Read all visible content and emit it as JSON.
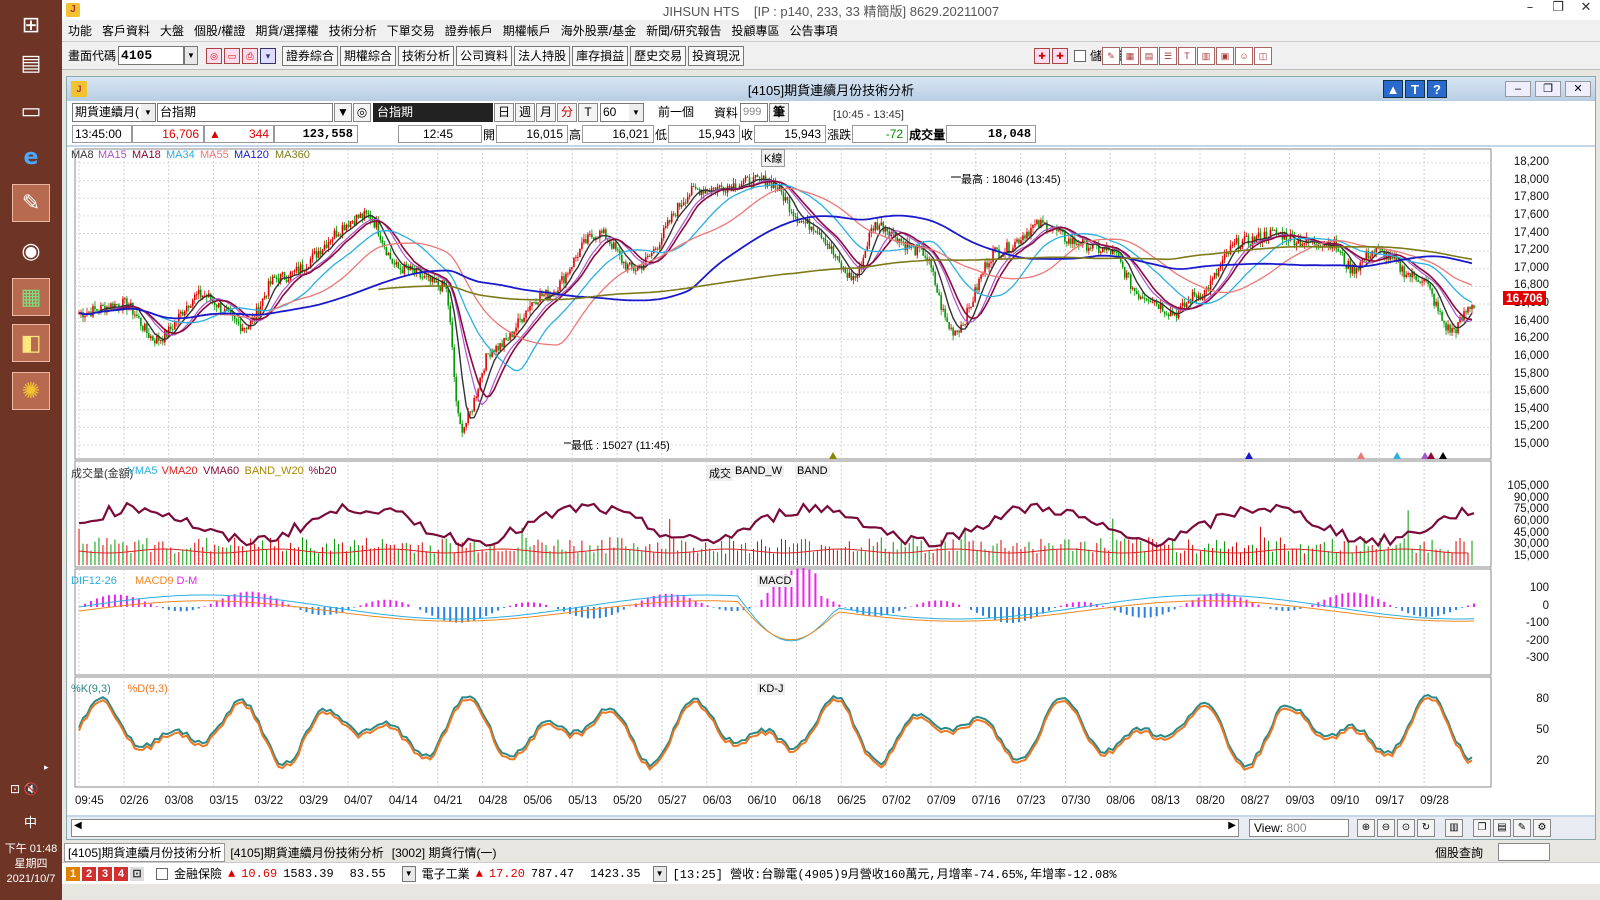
{
  "taskbar": {
    "clock_time": "下午 01:48",
    "clock_weekday": "星期四",
    "clock_date": "2021/10/7",
    "ime": "中"
  },
  "app": {
    "title": "JIHSUN HTS",
    "title_info": "[IP : p140, 233, 33 精簡版] 8629.20211007",
    "menu": [
      "功能",
      "客戶資料",
      "大盤",
      "個股/權證",
      "期貨/選擇權",
      "技術分析",
      "下單交易",
      "證券帳戶",
      "期權帳戶",
      "海外股票/基金",
      "新聞/研究報告",
      "投顧專區",
      "公告事項"
    ]
  },
  "toolbar": {
    "code_label": "畫面代碼",
    "code_value": "4105",
    "buttons": [
      "證券綜合",
      "期權綜合",
      "技術分析",
      "公司資料",
      "法人持股",
      "庫存損益",
      "歷史交易",
      "投資現況"
    ],
    "save_pwd_label": "儲存密碼"
  },
  "subwindow": {
    "title": "[4105]期貨連續月份技術分析",
    "product_select": "期貨連續月(",
    "index_field": "台指期",
    "index_black": "台指期",
    "periods": [
      "日",
      "週",
      "月",
      "分"
    ],
    "t_label": "T",
    "interval": "60",
    "prev_btn": "前一個",
    "data_label": "資料",
    "data_count": "999",
    "bar_unit": "筆",
    "range": "[10:45 - 13:45]"
  },
  "quote": {
    "time": "13:45:00",
    "price": "16,706",
    "change": "344",
    "volume_total": "123,558",
    "bar_time": "12:45",
    "open_label": "開",
    "open": "16,015",
    "high_label": "高",
    "high": "16,021",
    "low_label": "低",
    "low": "15,943",
    "close_label": "收",
    "close": "15,943",
    "chg_label": "漲跌",
    "chg": "-72",
    "vol_label": "成交量",
    "vol": "18,048"
  },
  "panels": {
    "main_legend": [
      "MA8",
      "MA15",
      "MA18",
      "MA34",
      "MA55",
      "MA120",
      "MA360"
    ],
    "main_legend_colors": [
      "#333333",
      "#aa55cc",
      "#8b0a3a",
      "#2ab0e0",
      "#ee7777",
      "#1a1acc",
      "#7d7a1a"
    ],
    "main_tag": "K線",
    "high_note": "最高 : 18046 (13:45)",
    "low_note": "最低 : 15027 (11:45)",
    "last_price_tag": "16,706",
    "vol_legend": [
      "成交量(金額)",
      "VMA5",
      "VMA20",
      "VMA60",
      "BAND_W20",
      "%b20"
    ],
    "vol_legend_colors": [
      "#333333",
      "#2ab0e0",
      "#dd2222",
      "#8b0a3a",
      "#aa8800",
      "#8b0a3a"
    ],
    "vol_tags": [
      "成交",
      "BAND_W",
      "BAND"
    ],
    "macd_legend": [
      "DIF12-26",
      "MACD9",
      "D-M"
    ],
    "macd_legend_colors": [
      "#2ab0e0",
      "#ee8822",
      "#ee22ee"
    ],
    "macd_tag": "MACD",
    "kd_legend": [
      "%K(9,3)",
      "%D(9,3)"
    ],
    "kd_legend_colors": [
      "#2a8a8a",
      "#ee7722"
    ],
    "kd_tag": "KD-J",
    "price_axis": [
      "18,200",
      "18,000",
      "17,800",
      "17,600",
      "17,400",
      "17,200",
      "17,000",
      "16,800",
      "16,600",
      "16,400",
      "16,200",
      "16,000",
      "15,800",
      "15,600",
      "15,400",
      "15,200",
      "15,000"
    ],
    "vol_axis": [
      "105,000",
      "90,000",
      "75,000",
      "60,000",
      "45,000",
      "30,000",
      "15,000"
    ],
    "macd_axis": [
      "100",
      "0",
      "-100",
      "-200",
      "-300"
    ],
    "kd_axis": [
      "80",
      "50",
      "20"
    ],
    "x_axis": [
      "09:45",
      "02/26",
      "03/08",
      "03/15",
      "03/22",
      "03/29",
      "04/07",
      "04/14",
      "04/21",
      "04/28",
      "05/06",
      "05/13",
      "05/20",
      "05/27",
      "06/03",
      "06/10",
      "06/18",
      "06/25",
      "07/02",
      "07/09",
      "07/16",
      "07/23",
      "07/30",
      "08/06",
      "08/13",
      "08/20",
      "08/27",
      "09/03",
      "09/10",
      "09/17",
      "09/28"
    ]
  },
  "view": {
    "label": "View:",
    "value": "800"
  },
  "tabs": [
    "[4105]期貨連續月份技術分析",
    "[4105]期貨連續月份技術分析",
    "[3002] 期貨行情(一)"
  ],
  "tabs_right": "個股查詢",
  "status": {
    "nums": [
      "1",
      "2",
      "3",
      "4"
    ],
    "item1_name": "金融保險",
    "item1_v1": "10.69",
    "item1_v2": "1583.39",
    "item1_v3": "83.55",
    "item2_name": "電子工業",
    "item2_v1": "17.20",
    "item2_v2": "787.47",
    "item2_v3": "1423.35",
    "news": "[13:25] 營收:台聯電(4905)9月營收160萬元,月增率-74.65%,年增率-12.08%"
  },
  "colors": {
    "up": "#dd0000",
    "down": "#009900",
    "ma120": "#1a1acc",
    "ma360": "#7d7a1a",
    "vol_band": "#7a0a3a"
  }
}
